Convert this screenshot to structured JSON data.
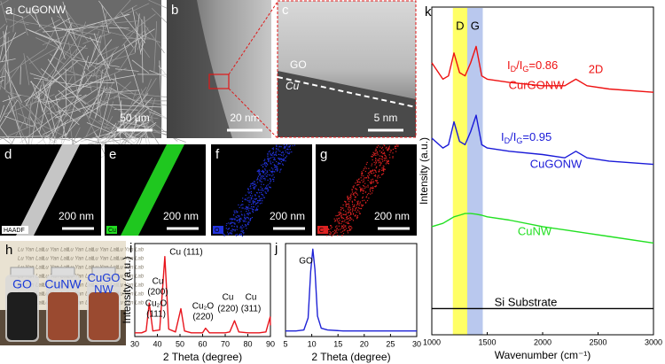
{
  "panels": {
    "a": {
      "letter": "a",
      "label": "CuGONW",
      "scale": "50 μm"
    },
    "b": {
      "letter": "b",
      "scale": "20 nm"
    },
    "c": {
      "letter": "c",
      "layer1": "GO",
      "layer2": "Cu",
      "scale": "5 nm"
    },
    "d": {
      "letter": "d",
      "tag": "HAADF",
      "scale": "200 nm"
    },
    "e": {
      "letter": "e",
      "tag": "Cu",
      "scale": "200 nm"
    },
    "f": {
      "letter": "f",
      "tag": "O",
      "scale": "200 nm"
    },
    "g": {
      "letter": "g",
      "tag": "C",
      "scale": "200 nm"
    },
    "h": {
      "letter": "h",
      "bottles": [
        "GO",
        "CuNW",
        "CuGO NW"
      ],
      "watermark": "Lu Yan Lab"
    }
  },
  "chart_data": [
    {
      "type": "line",
      "letter": "i",
      "x_label": "2 Theta (degree)",
      "y_label": "Intensity (a.u.)",
      "xlim": [
        30,
        90
      ],
      "xticks": [
        30,
        40,
        50,
        60,
        70,
        80,
        90
      ],
      "ylim": [
        0,
        100
      ],
      "x": [
        30,
        33,
        35,
        36.4,
        38,
        41,
        43.3,
        45,
        48,
        50.4,
        52,
        55,
        60,
        61.3,
        63,
        70,
        72,
        74.1,
        76,
        80,
        85,
        88,
        89.9,
        90
      ],
      "series": [
        {
          "color": "#e8141c",
          "values": [
            4,
            4,
            6,
            36,
            6,
            7,
            86,
            8,
            5,
            30,
            6,
            4,
            4,
            9,
            4,
            4,
            5,
            17,
            5,
            4,
            4,
            5,
            21,
            12
          ]
        }
      ],
      "annotations": [
        "Cu (111)",
        "Cu",
        "(200)",
        "Cu₂O",
        "(111)",
        "Cu₂O",
        "(220)",
        "Cu",
        "(220)",
        "Cu",
        "(311)"
      ]
    },
    {
      "type": "line",
      "letter": "j",
      "x_label": "2 Theta (degree)",
      "xlim": [
        5,
        30
      ],
      "xticks": [
        5,
        10,
        15,
        20,
        25,
        30
      ],
      "ylim": [
        0,
        100
      ],
      "x": [
        5,
        7,
        8.5,
        9.3,
        9.8,
        10.2,
        10.6,
        11.1,
        11.8,
        13,
        16,
        20,
        25,
        30
      ],
      "series": [
        {
          "color": "#1e22d6",
          "values": [
            6,
            6,
            7,
            20,
            70,
            94,
            72,
            22,
            9,
            7,
            6,
            6,
            6,
            6
          ]
        }
      ],
      "annotations": [
        "GO"
      ]
    },
    {
      "type": "line",
      "letter": "k",
      "x_label": "Wavenumber (cm⁻¹)",
      "y_label": "Intensity (a.u.)",
      "xlim": [
        1000,
        3000
      ],
      "xticks": [
        1000,
        1500,
        2000,
        2500,
        3000
      ],
      "ylim": [
        0,
        100
      ],
      "bands": [
        {
          "label": "D",
          "range": [
            1190,
            1320
          ],
          "color": "#ffff66"
        },
        {
          "label": "G",
          "range": [
            1320,
            1460
          ],
          "color": "#b9c8ee"
        }
      ],
      "x": [
        1000,
        1100,
        1150,
        1200,
        1250,
        1300,
        1350,
        1400,
        1450,
        1500,
        1700,
        2000,
        2200,
        2300,
        2400,
        2600,
        3000
      ],
      "series": [
        {
          "name": "CurGONW",
          "color": "#ee1111",
          "values": [
            83,
            78,
            79,
            86,
            80,
            79,
            83,
            88,
            79,
            78,
            77,
            76,
            76,
            78,
            76,
            75,
            74
          ],
          "ratio": [
            "I",
            "D",
            "/I",
            "G",
            "=0.86"
          ]
        },
        {
          "name": "CuGONW",
          "color": "#1a1ad8",
          "values": [
            60,
            57,
            58,
            65,
            59,
            58,
            62,
            67,
            58,
            57,
            56,
            55,
            54,
            56,
            54,
            53,
            52
          ],
          "ratio": [
            "I",
            "D",
            "/I",
            "G",
            "=0.95"
          ]
        },
        {
          "name": "CuNW",
          "color": "#22e022",
          "values": [
            33,
            34,
            35,
            36,
            36.5,
            37,
            37,
            36.8,
            36.5,
            36,
            35,
            33,
            32,
            31.5,
            31,
            30,
            28
          ]
        },
        {
          "name": "Si Substrate",
          "color": "#000000",
          "values": [
            8,
            8,
            8,
            8,
            8,
            8,
            8,
            8,
            8,
            8,
            8,
            8,
            8,
            8,
            8,
            8,
            8
          ]
        }
      ],
      "annotations": [
        "2D"
      ]
    }
  ]
}
